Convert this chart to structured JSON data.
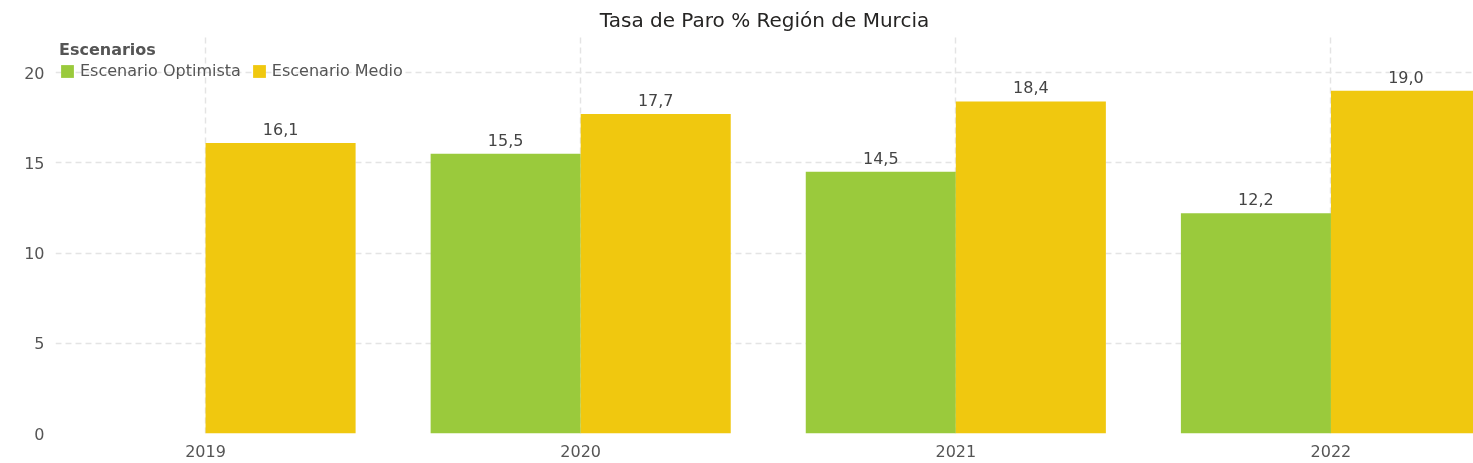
{
  "chart_data": {
    "type": "bar",
    "title": "Tasa de Paro % Región de Murcia",
    "legend_title": "Escenarios",
    "x": [
      2019,
      2020,
      2021,
      2022
    ],
    "series": [
      {
        "name": "Escenario Optimista",
        "color": "#9aca3c",
        "values": [
          null,
          15.5,
          14.5,
          12.2
        ],
        "value_labels": [
          null,
          "15,5",
          "14,5",
          "12,2"
        ]
      },
      {
        "name": "Escenario Medio",
        "color": "#f0c80f",
        "values": [
          16.1,
          17.7,
          18.4,
          19.0
        ],
        "value_labels": [
          "16,1",
          "17,7",
          "18,4",
          "19,0"
        ]
      }
    ],
    "xlim": [
      2018.6,
      2022.38
    ],
    "xticks": [
      2019,
      2020,
      2021,
      2022
    ],
    "ylim": [
      0,
      22
    ],
    "yticks": [
      0,
      5,
      10,
      15,
      20
    ],
    "grid": true,
    "legend": "top left"
  }
}
